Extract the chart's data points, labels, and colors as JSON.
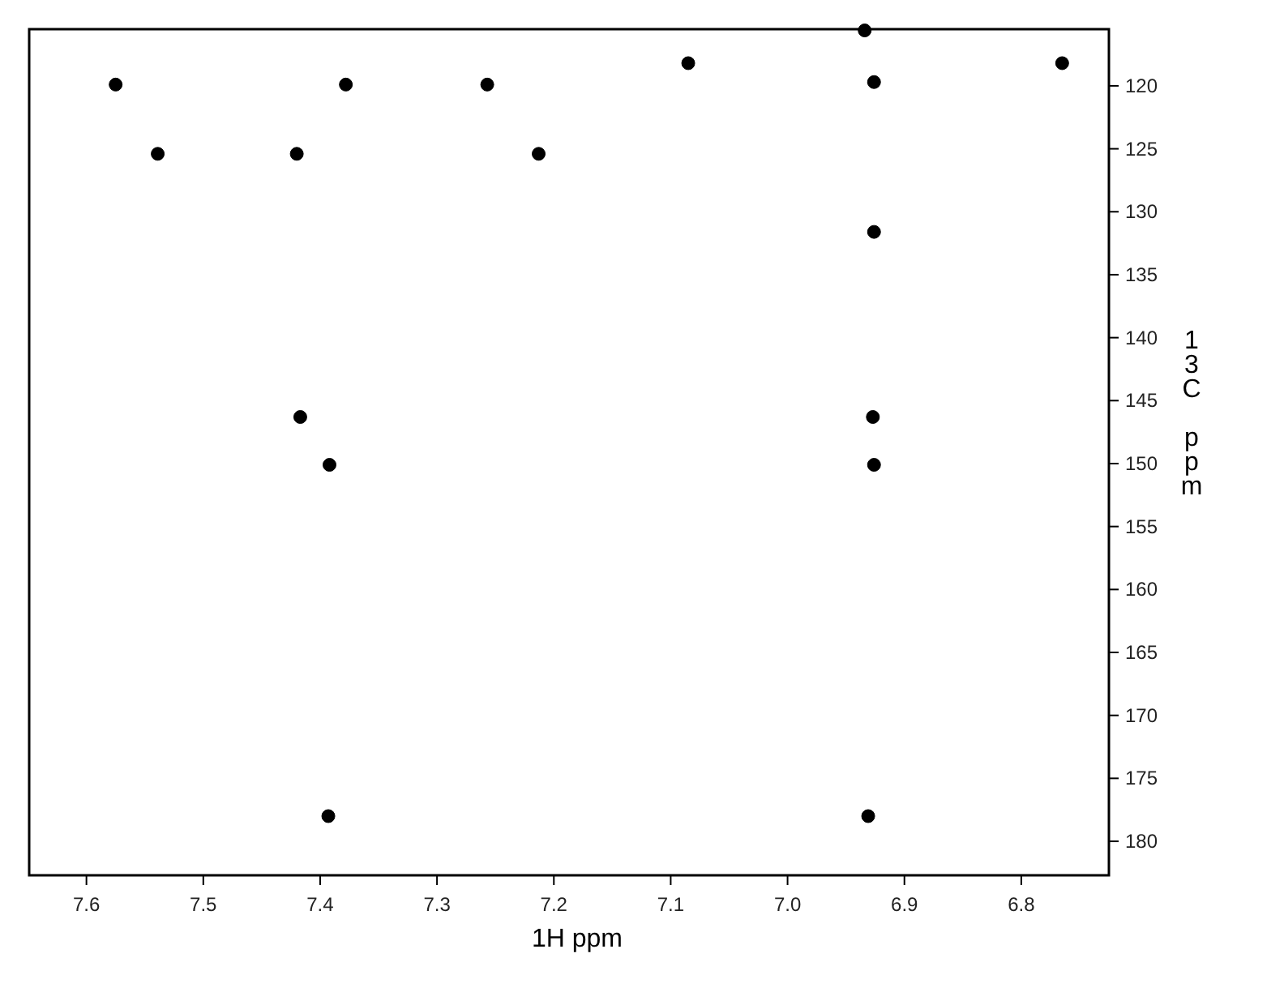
{
  "chart_data": {
    "type": "scatter",
    "xlabel": "1H ppm",
    "ylabel": "13C ppm",
    "marker": "circle",
    "grid": false,
    "xlim": [
      7.649,
      6.725
    ],
    "ylim": [
      182.7,
      115.5
    ],
    "xticks": [
      {
        "value": 7.6,
        "label": "7.6"
      },
      {
        "value": 7.5,
        "label": "7.5"
      },
      {
        "value": 7.4,
        "label": "7.4"
      },
      {
        "value": 7.3,
        "label": "7.3"
      },
      {
        "value": 7.2,
        "label": "7.2"
      },
      {
        "value": 7.1,
        "label": "7.1"
      },
      {
        "value": 7.0,
        "label": "7.0"
      },
      {
        "value": 6.9,
        "label": "6.9"
      },
      {
        "value": 6.8,
        "label": "6.8"
      }
    ],
    "yticks": [
      120,
      125,
      130,
      135,
      140,
      145,
      150,
      155,
      160,
      165,
      170,
      175,
      180
    ],
    "x": [
      7.575,
      7.378,
      7.257,
      7.539,
      7.42,
      7.213,
      7.417,
      7.392,
      7.393,
      7.085,
      6.765,
      6.926,
      6.926,
      6.927,
      6.926,
      6.931,
      6.934
    ],
    "series": [
      {
        "color": "#000000",
        "values": [
          119.9,
          119.9,
          119.9,
          125.4,
          125.4,
          125.4,
          146.3,
          150.1,
          178.0,
          118.2,
          118.2,
          119.7,
          131.6,
          146.3,
          150.1,
          178.0,
          115.6
        ]
      }
    ]
  }
}
